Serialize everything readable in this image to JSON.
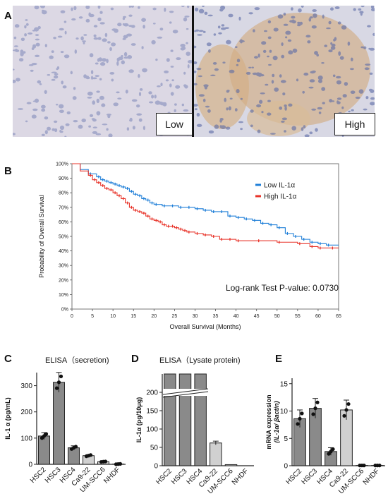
{
  "figure": {
    "panel_a": {
      "label": "A",
      "left_tag": "Low",
      "right_tag": "High"
    },
    "panel_b": {
      "label": "B"
    },
    "panel_c": {
      "label": "C"
    },
    "panel_d": {
      "label": "D"
    },
    "panel_e": {
      "label": "E"
    }
  },
  "chart_data": [
    {
      "type": "line",
      "panel": "B",
      "ylabel": "Probability of Overall Survival",
      "xlabel": "Overall Survival (Months)",
      "xlim": [
        0,
        65
      ],
      "ylim": [
        0,
        100
      ],
      "xticks": [
        "0",
        "5",
        "10",
        "15",
        "20",
        "25",
        "30",
        "35",
        "40",
        "45",
        "50",
        "55",
        "60",
        "65"
      ],
      "yticks": [
        "0%",
        "10%",
        "20%",
        "30%",
        "40%",
        "50%",
        "60%",
        "70%",
        "80%",
        "90%",
        "100%"
      ],
      "annotation": "Log-rank  Test P-value: 0.0730",
      "legend_position": "top-right",
      "series": [
        {
          "name": "Low IL-1α",
          "color": "#1f7fd8",
          "x": [
            0,
            2,
            4,
            6,
            7,
            8,
            9,
            10,
            11,
            12,
            13,
            14,
            15,
            16,
            17,
            18,
            19,
            20,
            22,
            24,
            26,
            28,
            30,
            32,
            34,
            36,
            38,
            40,
            42,
            44,
            46,
            48,
            50,
            52,
            54,
            56,
            58,
            60,
            62,
            65
          ],
          "y": [
            100,
            96,
            93,
            91,
            89,
            88,
            87,
            86,
            85,
            84,
            83,
            81,
            79,
            78,
            76,
            75,
            73,
            72,
            71,
            71,
            70,
            70,
            69,
            68,
            67,
            67,
            64,
            63,
            62,
            61,
            59,
            58,
            56,
            52,
            50,
            48,
            46,
            45,
            44,
            44
          ]
        },
        {
          "name": "High IL-1α",
          "color": "#e8342a",
          "x": [
            0,
            2,
            4,
            5,
            6,
            7,
            8,
            9,
            10,
            11,
            12,
            13,
            14,
            15,
            16,
            17,
            18,
            19,
            20,
            21,
            22,
            23,
            24,
            25,
            26,
            27,
            28,
            30,
            32,
            34,
            36,
            38,
            40,
            45,
            50,
            55,
            58,
            60,
            63,
            65
          ],
          "y": [
            100,
            95,
            92,
            89,
            87,
            85,
            83,
            82,
            80,
            78,
            76,
            73,
            70,
            68,
            67,
            66,
            64,
            62,
            61,
            60,
            58,
            57,
            57,
            56,
            55,
            54,
            53,
            52,
            51,
            50,
            48,
            48,
            47,
            47,
            46,
            45,
            43,
            42,
            42,
            42
          ]
        }
      ]
    },
    {
      "type": "bar",
      "panel": "C",
      "title": "ELISA（secretion)",
      "ylabel": "IL-1 α (pg/mL)",
      "ylim": [
        0,
        350
      ],
      "yticks": [
        "0",
        "100",
        "200",
        "300"
      ],
      "categories": [
        "HSC2",
        "HSC3",
        "HSC4",
        "Ca9-22",
        "UM-SCC6",
        "NHDF"
      ],
      "values": [
        108,
        313,
        63,
        33,
        10,
        1
      ]
    },
    {
      "type": "bar",
      "panel": "D",
      "title": "ELISA（Lysate protein)",
      "ylabel": "IL-1α (pg/10μg)",
      "ylim": [
        0,
        250
      ],
      "yticks": [
        "0",
        "50",
        "100",
        "150",
        "200"
      ],
      "categories": [
        "HSC2",
        "HSC3",
        "HSC4",
        "Ca9-22",
        "UM-SCC6",
        "NHDF"
      ],
      "values": [
        250,
        250,
        250,
        62,
        3,
        0
      ],
      "axis_break": true
    },
    {
      "type": "bar",
      "panel": "E",
      "ylabel": "mRNA expression",
      "ylabel2": "(IL-1α/ βactin)",
      "ylim": [
        0,
        16
      ],
      "yticks": [
        "0",
        "5",
        "10",
        "15"
      ],
      "categories": [
        "HSC2",
        "HSC3",
        "HSC4",
        "Ca9-22",
        "UM-SCC6",
        "NHDF"
      ],
      "values": [
        8.6,
        10.5,
        2.6,
        10.2,
        0.05,
        0.05
      ],
      "errors": [
        1.6,
        1.8,
        0.7,
        1.8,
        0,
        0
      ]
    }
  ]
}
